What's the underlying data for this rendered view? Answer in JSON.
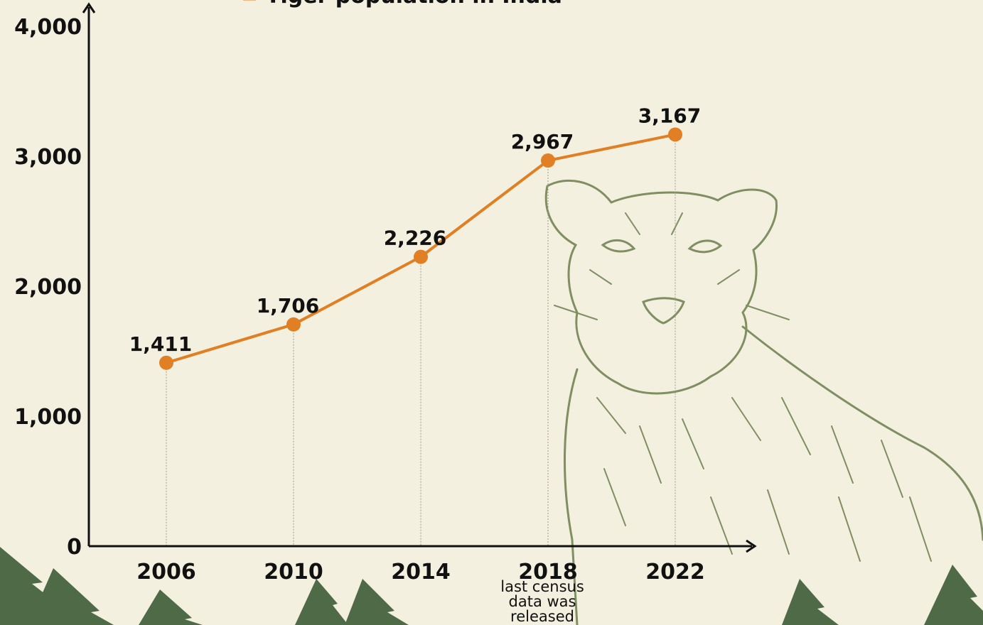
{
  "chart_data": {
    "type": "line",
    "legend": "Tiger population in India",
    "legend_position": "top",
    "categories": [
      "2006",
      "2010",
      "2014",
      "2018",
      "2022"
    ],
    "series": [
      {
        "name": "Tiger population in India",
        "values": [
          1411,
          1706,
          2226,
          2967,
          3167
        ]
      }
    ],
    "value_labels": [
      "1,411",
      "1,706",
      "2,226",
      "2,967",
      "3,167"
    ],
    "y_ticks": [
      "0",
      "1,000",
      "2,000",
      "3,000",
      "4,000"
    ],
    "ylim": [
      0,
      4000
    ],
    "grid": false,
    "annotation": {
      "category": "2018",
      "lines": [
        "last census",
        "data was",
        "released"
      ]
    }
  },
  "colors": {
    "background": "#f4f0e0",
    "line": "#e07f23",
    "axis": "#111111",
    "illustration": "#7f8f62",
    "trees": "#4f6a47"
  }
}
